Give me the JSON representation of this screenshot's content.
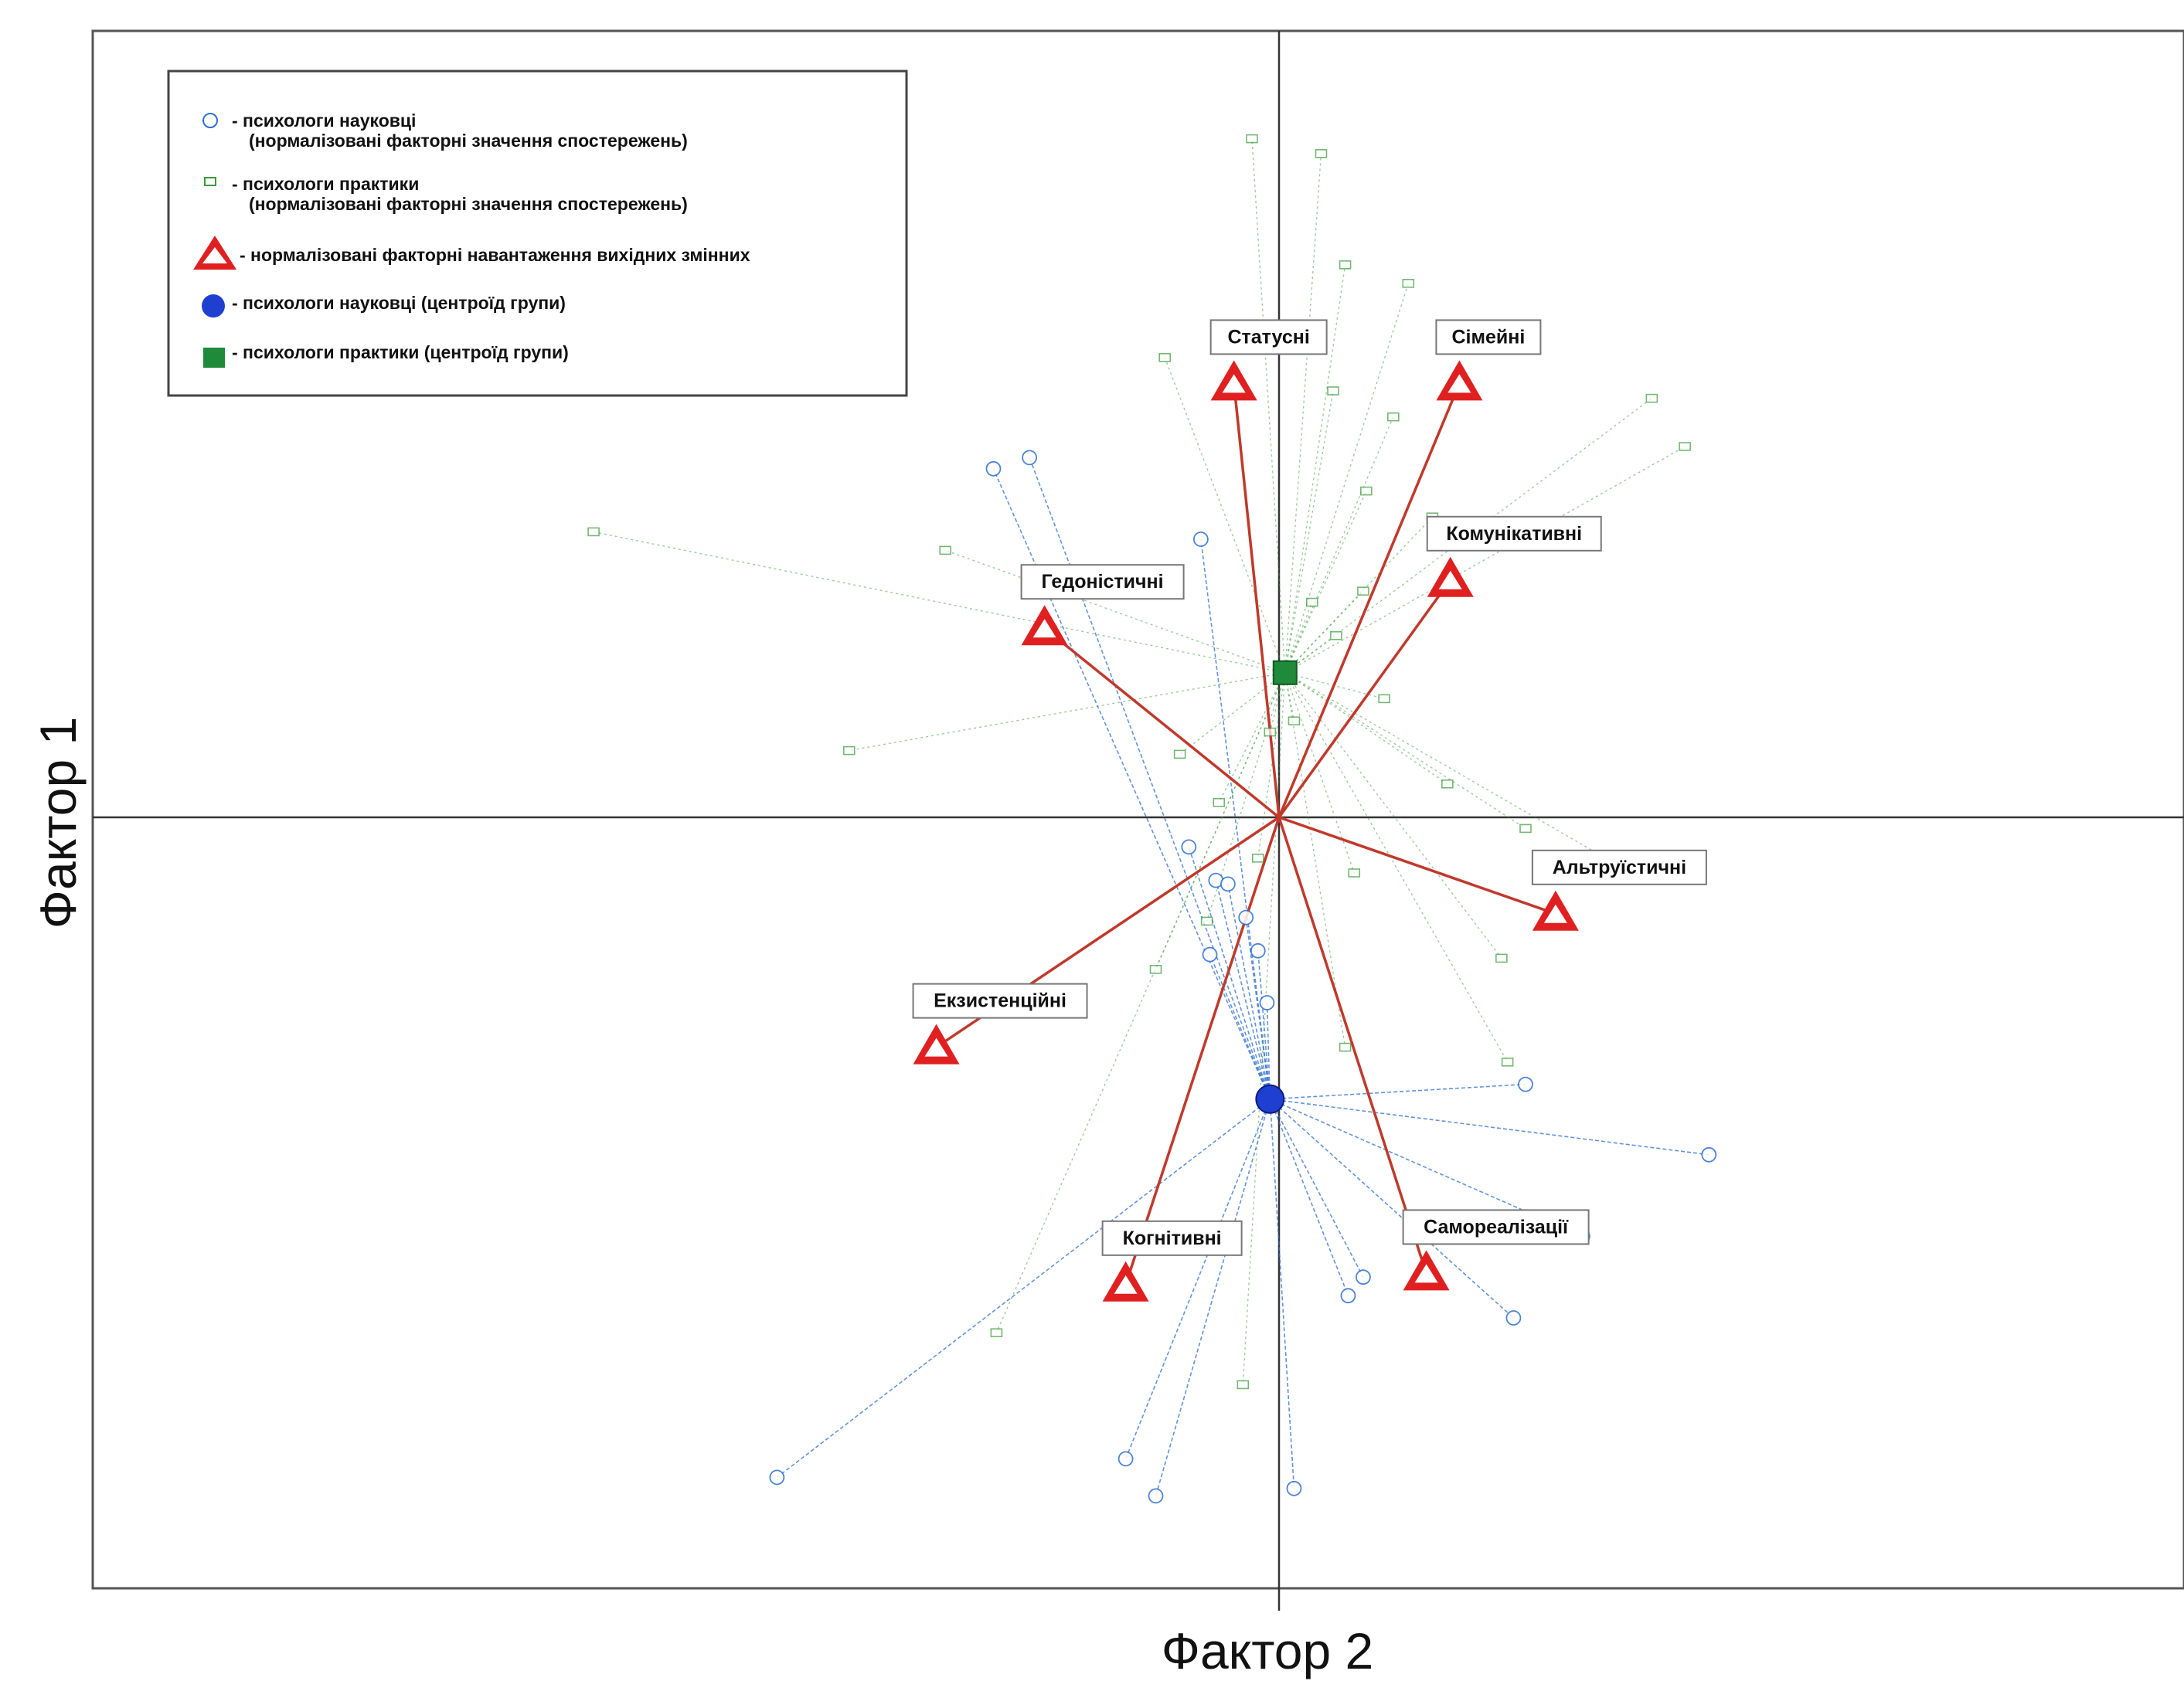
{
  "colors": {
    "scientists": "#2f6fd0",
    "practitioners": "#3a9a3a",
    "loading": "#e02020",
    "loading_line": "#c0392b",
    "axis": "#333333",
    "triangle_inner": "#ffffff"
  },
  "chart_data": {
    "type": "scatter",
    "xlabel": "Фактор 2",
    "ylabel": "Фактор 1",
    "xlim": [
      -3.3,
      2.5
    ],
    "ylim": [
      -2.15,
      2.25
    ],
    "grid": false,
    "legend_position": "top-left",
    "origin": [
      0,
      0
    ],
    "legend": [
      {
        "icon": "scientist-observation-circle",
        "lines": [
          "- психологи науковці",
          "(нормалізовані факторні значення спостережень)"
        ]
      },
      {
        "icon": "practitioner-observation-square",
        "lines": [
          "- психологи практики",
          "(нормалізовані факторні значення спостережень)"
        ]
      },
      {
        "icon": "loading-triangle",
        "lines": [
          "- нормалізовані факторні навантаження вихідних змінних"
        ]
      },
      {
        "icon": "scientist-centroid-circle",
        "lines": [
          "- психологи науковці (центроїд групи)"
        ]
      },
      {
        "icon": "practitioner-centroid-square",
        "lines": [
          "- психологи практики (центроїд групи)"
        ]
      }
    ],
    "loadings": [
      {
        "name": "Статусні",
        "x": -0.15,
        "y": 1.17
      },
      {
        "name": "Сімейні",
        "x": 0.6,
        "y": 1.17
      },
      {
        "name": "Комунікативні",
        "x": 0.57,
        "y": 0.64
      },
      {
        "name": "Гедоністичні",
        "x": -0.78,
        "y": 0.51
      },
      {
        "name": "Альтруїстичні",
        "x": 0.92,
        "y": -0.26
      },
      {
        "name": "Екзистенційні",
        "x": -1.14,
        "y": -0.62
      },
      {
        "name": "Когнітивні",
        "x": -0.51,
        "y": -1.26
      },
      {
        "name": "Самореалізації",
        "x": 0.49,
        "y": -1.23
      }
    ],
    "centroids": [
      {
        "name": "психологи науковці",
        "x": -0.03,
        "y": -0.76
      },
      {
        "name": "психологи практики",
        "x": 0.02,
        "y": 0.39
      }
    ],
    "series": [
      {
        "name": "психологи науковці",
        "x": [
          -0.95,
          -0.83,
          -0.26,
          -0.21,
          -0.17,
          -1.67,
          -0.51,
          -0.41,
          0.05,
          0.82,
          1.43,
          1.01,
          0.78,
          0.28,
          0.23,
          -0.04,
          -0.07,
          -0.11,
          -0.23,
          -0.3
        ],
        "y": [
          0.94,
          0.97,
          0.75,
          -0.17,
          -0.18,
          -1.78,
          -1.73,
          -1.83,
          -1.81,
          -0.72,
          -0.91,
          -1.13,
          -1.35,
          -1.24,
          -1.29,
          -0.5,
          -0.36,
          -0.27,
          -0.37,
          -0.08
        ]
      },
      {
        "name": "психологи практики",
        "x": [
          -2.28,
          -1.11,
          -1.43,
          -0.38,
          -0.33,
          -0.2,
          -0.41,
          -0.09,
          0.14,
          0.22,
          0.38,
          0.43,
          0.29,
          0.18,
          0.51,
          1.24,
          1.35,
          0.11,
          0.05,
          -0.03,
          0.25,
          1.15,
          0.74,
          0.76,
          0.22,
          -0.24,
          -0.94,
          -0.12,
          -0.07,
          0.28,
          0.19,
          0.35,
          0.56,
          0.82
        ],
        "y": [
          0.77,
          0.72,
          0.18,
          1.24,
          0.17,
          0.04,
          -0.41,
          1.83,
          1.79,
          1.49,
          1.08,
          1.44,
          0.88,
          1.15,
          0.81,
          1.13,
          1.0,
          0.58,
          0.26,
          0.23,
          -0.15,
          -0.14,
          -0.38,
          -0.66,
          -0.62,
          -0.28,
          -1.39,
          -1.53,
          -0.11,
          0.61,
          0.49,
          0.32,
          0.09,
          -0.03
        ]
      }
    ]
  }
}
